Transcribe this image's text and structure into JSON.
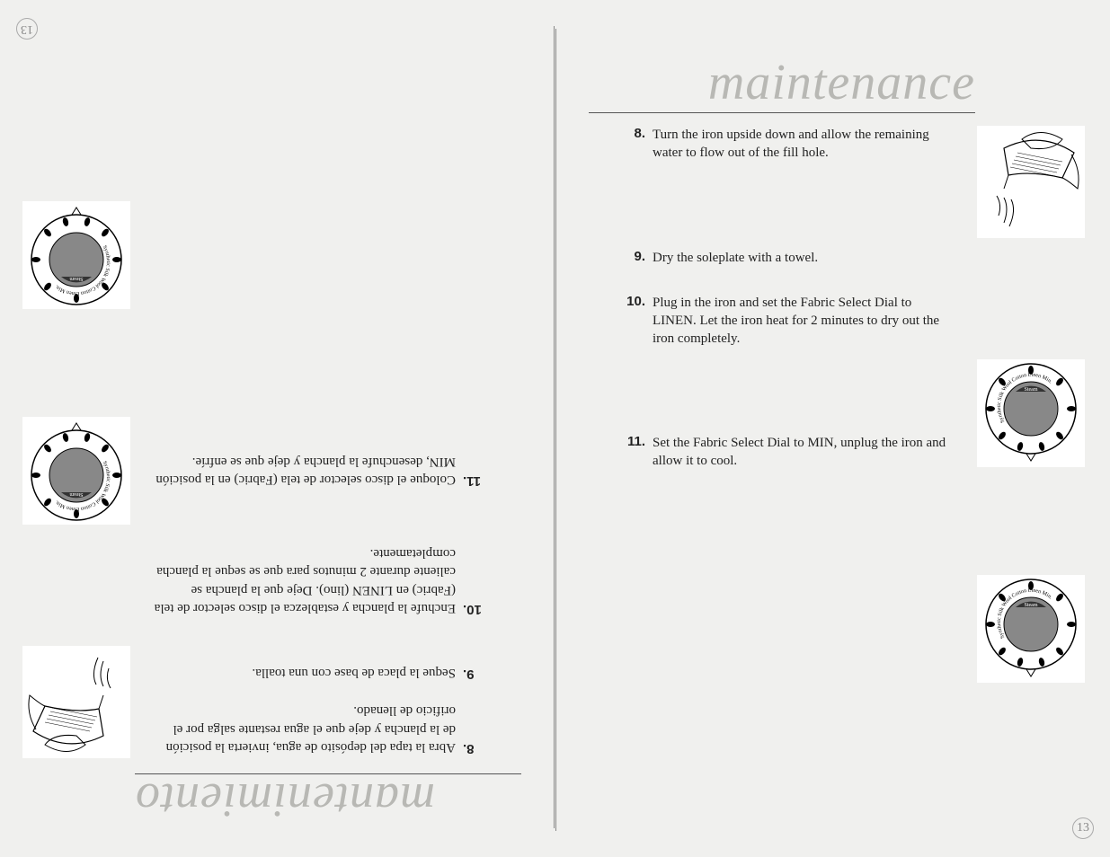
{
  "right": {
    "title": "maintenance",
    "page_number": "13",
    "steps": [
      {
        "n": "8.",
        "t": "Turn the iron upside down and allow the remaining water to flow out of the fill hole.",
        "gap_after": 96
      },
      {
        "n": "9.",
        "t": "Dry the soleplate with a towel.",
        "gap_after": 30
      },
      {
        "n": "10.",
        "t": "Plug in the iron and set the Fabric Select Dial to LINEN. Let the iron heat for 2 minutes to dry out the iron completely.",
        "gap_after": 95
      },
      {
        "n": "11.",
        "t": "Set the Fabric Select Dial to MIN, unplug the iron and allow it to cool.",
        "gap_after": 0
      }
    ],
    "illustrations": [
      "iron-pour",
      "dial-linen",
      "dial-min"
    ]
  },
  "left": {
    "title": "mantenimiento",
    "page_number": "13",
    "steps": [
      {
        "n": "8.",
        "t": "Abra la tapa del depósito de agua, invierta la posición de la plancha y deje que el agua restante salga por el orificio de llenado.",
        "gap_after": 22
      },
      {
        "n": "9.",
        "t": "Seque la placa de base con una toalla.",
        "gap_after": 52
      },
      {
        "n": "10.",
        "t": "Enchufe la plancha y establezca el disco selector de tela (Fabric) en LINEN (lino). Deje que la plancha se caliente durante 2 minutos para que se seque la plancha completamente.",
        "gap_after": 62
      },
      {
        "n": "11.",
        "t": "Coloque el disco selector de tela (Fabric) en la posición MIN, desenchufe la plancha y deje que se enfríe.",
        "gap_after": 0
      }
    ],
    "illustrations": [
      "iron-pour",
      "dial-linen",
      "dial-min"
    ]
  },
  "dial": {
    "labels": [
      "Synthetic",
      "Silk",
      "Wool",
      "Cotton",
      "Linen",
      "Min."
    ],
    "steam_label": "Steam"
  },
  "colors": {
    "bg": "#f0f0ee",
    "title": "#b8b8b4",
    "text": "#222",
    "line": "#555"
  }
}
